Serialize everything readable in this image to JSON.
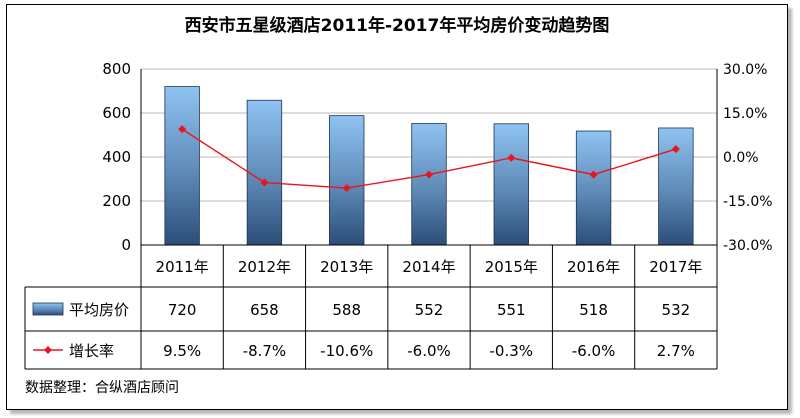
{
  "chart_data": {
    "type": "bar",
    "title": "西安市五星级酒店2011年-2017年平均房价变动趋势图",
    "categories": [
      "2011年",
      "2012年",
      "2013年",
      "2014年",
      "2015年",
      "2016年",
      "2017年"
    ],
    "series": [
      {
        "name": "平均房价",
        "type": "bar",
        "axis": "left",
        "values": [
          720,
          658,
          588,
          552,
          551,
          518,
          532
        ],
        "labels": [
          "720",
          "658",
          "588",
          "552",
          "551",
          "518",
          "532"
        ],
        "color": "#7fb2e5"
      },
      {
        "name": "增长率",
        "type": "line",
        "axis": "right",
        "values": [
          9.5,
          -8.7,
          -10.6,
          -6.0,
          -0.3,
          -6.0,
          2.7
        ],
        "labels": [
          "9.5%",
          "-8.7%",
          "-10.6%",
          "-6.0%",
          "-0.3%",
          "-6.0%",
          "2.7%"
        ],
        "color": "#e8161c"
      }
    ],
    "ylim_left": [
      0,
      800
    ],
    "yticks_left": [
      "800",
      "600",
      "400",
      "200",
      "0"
    ],
    "ylim_right": [
      -30,
      30
    ],
    "yticks_right": [
      "30.0%",
      "15.0%",
      "0.0%",
      "-15.0%",
      "-30.0%"
    ],
    "grid": true,
    "legend": "data-table"
  },
  "source": "数据整理：合纵酒店顾问"
}
